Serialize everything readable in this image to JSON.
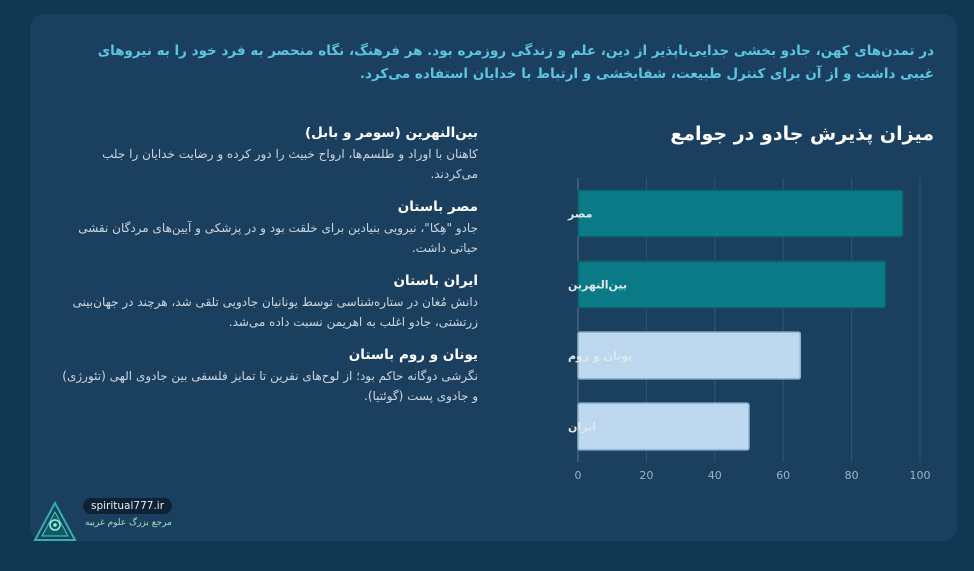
{
  "intro": "در تمدن‌های کهن، جادو بخشی جدایی‌ناپذیر از دین، علم و زندگی روزمره بود. هر فرهنگ، نگاه منحصر به فرد خود را به نیروهای غیبی داشت و از آن برای کنترل طبیعت، شفابخشی و ارتباط با خدایان استفاده می‌کرد.",
  "civilizations": [
    {
      "title": "بین‌النهرین (سومر و بابل)",
      "desc": "کاهنان با اوراد و طلسم‌ها، ارواح خبیث را دور کرده و رضایت خدایان را جلب می‌کردند."
    },
    {
      "title": "مصر باستان",
      "desc": "جادو \"هِکا\"، نیرویی بنیادین برای خلقت بود و در پزشکی و آیین‌های مردگان نقشی حیاتی داشت."
    },
    {
      "title": "ایران باستان",
      "desc": "دانش مُغان در ستاره‌شناسی توسط یونانیان جادویی تلقی شد، هرچند در جهان‌بینی زرتشتی، جادو اغلب به اهریمن نسبت داده می‌شد."
    },
    {
      "title": "یونان و روم باستان",
      "desc": "نگرشی دوگانه حاکم بود؛ از لوح‌های نفرین تا تمایز فلسفی بین جادوی الهی (تئورژی) و جادوی پست (گوئتیا)."
    }
  ],
  "chart_data": {
    "type": "bar",
    "orientation": "horizontal",
    "title": "میزان پذیرش جادو در جوامع",
    "categories": [
      "مصر",
      "بین‌النهرین",
      "یونان و روم",
      "ایران"
    ],
    "values": [
      95,
      90,
      65,
      50
    ],
    "xlim": [
      0,
      100
    ],
    "xticks": [
      0,
      20,
      40,
      60,
      80,
      100
    ],
    "grid": true,
    "colors": [
      "#0a7b86",
      "#0a7b86",
      "#bdd8ee",
      "#bdd8ee"
    ],
    "borders": [
      "#0e5a63",
      "#0e5a63",
      "#8fb2cc",
      "#8fb2cc"
    ]
  },
  "brand": {
    "url": "spiritual777.ir",
    "subtitle": "مرجع بزرگ علوم غریبه"
  }
}
